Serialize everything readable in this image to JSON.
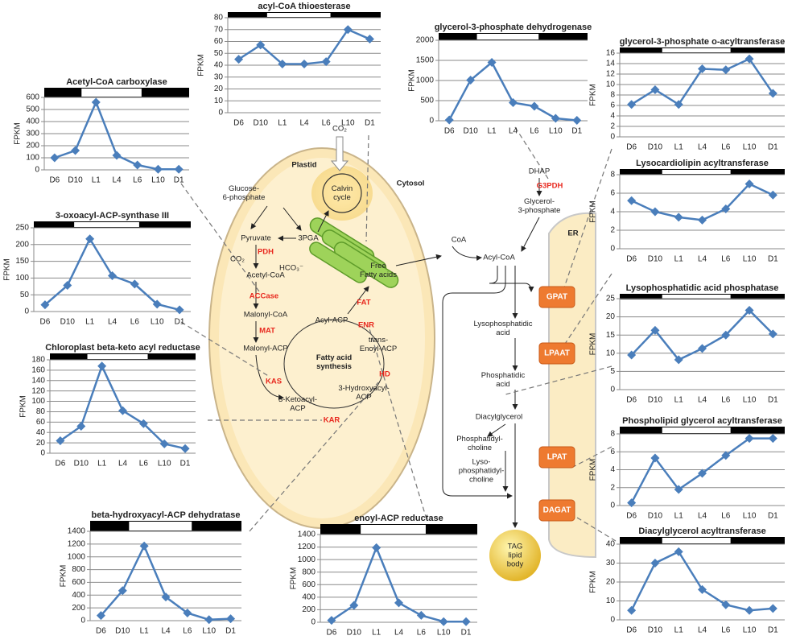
{
  "chart_data": [
    {
      "type": "line",
      "title": "acyl-CoA thioesterase",
      "y_label": "FPKM",
      "categories": [
        "D6",
        "D10",
        "L1",
        "L4",
        "L6",
        "L10",
        "D1"
      ],
      "values": [
        45,
        57,
        41,
        41,
        43,
        70,
        62
      ],
      "color": "#4a7ebb",
      "ylim": [
        0,
        80
      ],
      "yticks": [
        0,
        10,
        20,
        30,
        40,
        50,
        60,
        70,
        80
      ],
      "grid": true
    },
    {
      "type": "line",
      "title": "glycerol-3-phosphate dehydrogenase",
      "y_label": "FPKM",
      "categories": [
        "D6",
        "D10",
        "L1",
        "L4",
        "L6",
        "L10",
        "D1"
      ],
      "values": [
        20,
        1010,
        1450,
        450,
        360,
        60,
        10
      ],
      "color": "#4a7ebb",
      "ylim": [
        0,
        2000
      ],
      "yticks": [
        0,
        500,
        1000,
        1500,
        2000
      ],
      "grid": true
    },
    {
      "type": "line",
      "title": "glycerol-3-phosphate o-acyltransferase",
      "y_label": "FPKM",
      "categories": [
        "D6",
        "D10",
        "L1",
        "L4",
        "L6",
        "L10",
        "D1"
      ],
      "values": [
        6.2,
        9,
        6.2,
        13,
        12.8,
        14.9,
        8.3
      ],
      "color": "#4a7ebb",
      "ylim": [
        0,
        16
      ],
      "yticks": [
        0,
        2,
        4,
        6,
        8,
        10,
        12,
        14,
        16
      ],
      "grid": true
    },
    {
      "type": "line",
      "title": "Acetyl-CoA carboxylase",
      "y_label": "FPKM",
      "categories": [
        "D6",
        "D10",
        "L1",
        "L4",
        "L6",
        "L10",
        "D1"
      ],
      "values": [
        100,
        160,
        560,
        120,
        40,
        5,
        5
      ],
      "color": "#4a7ebb",
      "ylim": [
        0,
        600
      ],
      "yticks": [
        0,
        100,
        200,
        300,
        400,
        500,
        600
      ],
      "grid": true
    },
    {
      "type": "line",
      "title": "Lysocardiolipin acyltransferase",
      "y_label": "FPKM",
      "categories": [
        "D6",
        "D10",
        "L1",
        "L4",
        "L6",
        "L10",
        "D1"
      ],
      "values": [
        5.2,
        4.0,
        3.4,
        3.1,
        4.3,
        7.0,
        5.8
      ],
      "color": "#4a7ebb",
      "ylim": [
        0,
        8
      ],
      "yticks": [
        0,
        2,
        4,
        6,
        8
      ],
      "grid": true
    },
    {
      "type": "line",
      "title": "3-oxoacyl-ACP-synthase III",
      "y_label": "FPKM",
      "categories": [
        "D6",
        "D10",
        "L1",
        "L4",
        "L6",
        "L10",
        "D1"
      ],
      "values": [
        20,
        78,
        217,
        107,
        82,
        22,
        5
      ],
      "color": "#4a7ebb",
      "ylim": [
        0,
        250
      ],
      "yticks": [
        0,
        50,
        100,
        150,
        200,
        250
      ],
      "grid": true
    },
    {
      "type": "line",
      "title": "Lysophosphatidic acid phosphatase",
      "y_label": "FPKM",
      "categories": [
        "D6",
        "D10",
        "L1",
        "L4",
        "L6",
        "L10",
        "D1"
      ],
      "values": [
        9.5,
        16.3,
        8.2,
        11.3,
        15,
        21.8,
        15.3
      ],
      "color": "#4a7ebb",
      "ylim": [
        0,
        25
      ],
      "yticks": [
        0,
        5,
        10,
        15,
        20,
        25
      ],
      "grid": true
    },
    {
      "type": "line",
      "title": "Chloroplast beta-keto acyl reductase",
      "y_label": "FPKM",
      "categories": [
        "D6",
        "D10",
        "L1",
        "L4",
        "L6",
        "L10",
        "D1"
      ],
      "values": [
        24,
        52,
        168,
        82,
        57,
        18,
        9
      ],
      "color": "#4a7ebb",
      "ylim": [
        0,
        180
      ],
      "yticks": [
        0,
        20,
        40,
        60,
        80,
        100,
        120,
        140,
        160,
        180
      ],
      "grid": true
    },
    {
      "type": "line",
      "title": "Phospholipid glycerol acyltransferase",
      "y_label": "FPKM",
      "categories": [
        "D6",
        "D10",
        "L1",
        "L4",
        "L6",
        "L10",
        "D1"
      ],
      "values": [
        0.3,
        5.3,
        1.8,
        3.6,
        5.6,
        7.5,
        7.5
      ],
      "color": "#4a7ebb",
      "ylim": [
        0,
        8
      ],
      "yticks": [
        0,
        2,
        4,
        6,
        8
      ],
      "grid": true
    },
    {
      "type": "line",
      "title": "beta-hydroxyacyl-ACP dehydratase",
      "y_label": "FPKM",
      "categories": [
        "D6",
        "D10",
        "L1",
        "L4",
        "L6",
        "L10",
        "D1"
      ],
      "values": [
        80,
        470,
        1170,
        370,
        120,
        15,
        30
      ],
      "color": "#4a7ebb",
      "ylim": [
        0,
        1400
      ],
      "yticks": [
        0,
        200,
        400,
        600,
        800,
        1000,
        1200,
        1400
      ],
      "grid": true
    },
    {
      "type": "line",
      "title": "enoyl-ACP reductase",
      "y_label": "FPKM",
      "categories": [
        "D6",
        "D10",
        "L1",
        "L4",
        "L6",
        "L10",
        "D1"
      ],
      "values": [
        30,
        270,
        1190,
        310,
        110,
        10,
        10
      ],
      "color": "#4a7ebb",
      "ylim": [
        0,
        1400
      ],
      "yticks": [
        0,
        200,
        400,
        600,
        800,
        1000,
        1200,
        1400
      ],
      "grid": true
    },
    {
      "type": "line",
      "title": "Diacylglycerol acyltransferase",
      "y_label": "FPKM",
      "categories": [
        "D6",
        "D10",
        "L1",
        "L4",
        "L6",
        "L10",
        "D1"
      ],
      "values": [
        5,
        30,
        36,
        16,
        8,
        5,
        6
      ],
      "color": "#4a7ebb",
      "ylim": [
        0,
        40
      ],
      "yticks": [
        0,
        10,
        20,
        30,
        40
      ],
      "grid": true
    }
  ],
  "diagram": {
    "labels": [
      [
        "Plastid"
      ],
      [
        "Cytosol"
      ],
      [
        "Calvin",
        "cycle"
      ],
      [
        "Glucose-",
        "6-phosphate"
      ],
      [
        "Pyruvate"
      ],
      [
        "3PGA"
      ],
      [
        "CO₂"
      ],
      [
        "CO₂"
      ],
      [
        "Acetyl-CoA"
      ],
      [
        "HCO₃⁻"
      ],
      [
        "Malonyl-CoA"
      ],
      [
        "Malonyl-ACP"
      ],
      [
        "Fatty acid",
        "synthesis"
      ],
      [
        "Acyl-ACP"
      ],
      [
        "Free",
        "Fatty acids"
      ],
      [
        "trans-",
        "Enoyl-ACP"
      ],
      [
        "3-Hydroxyacyl-",
        "ACP"
      ],
      [
        "3-Ketoacyl-",
        "ACP"
      ],
      [
        "CoA"
      ],
      [
        "Acyl-CoA"
      ],
      [
        "DHAP"
      ],
      [
        "Glycerol-",
        "3-phosphate"
      ],
      [
        "ER"
      ],
      [
        "Lysophosphatidic",
        "acid"
      ],
      [
        "Phosphatidic",
        "acid"
      ],
      [
        "Diacylglycerol"
      ],
      [
        "Phosphatidyl-",
        "choline"
      ],
      [
        "Lyso-",
        "phosphatidyl-",
        "choline"
      ],
      [
        "TAG",
        "lipid",
        "body"
      ]
    ],
    "enzymes": [
      "PDH",
      "ACCase",
      "MAT",
      "KAS",
      "KAR",
      "HD",
      "ENR",
      "FAT",
      "G3PDH"
    ],
    "er_enzymes": [
      "GPAT",
      "LPAAT",
      "LPAT",
      "DAGAT"
    ]
  }
}
